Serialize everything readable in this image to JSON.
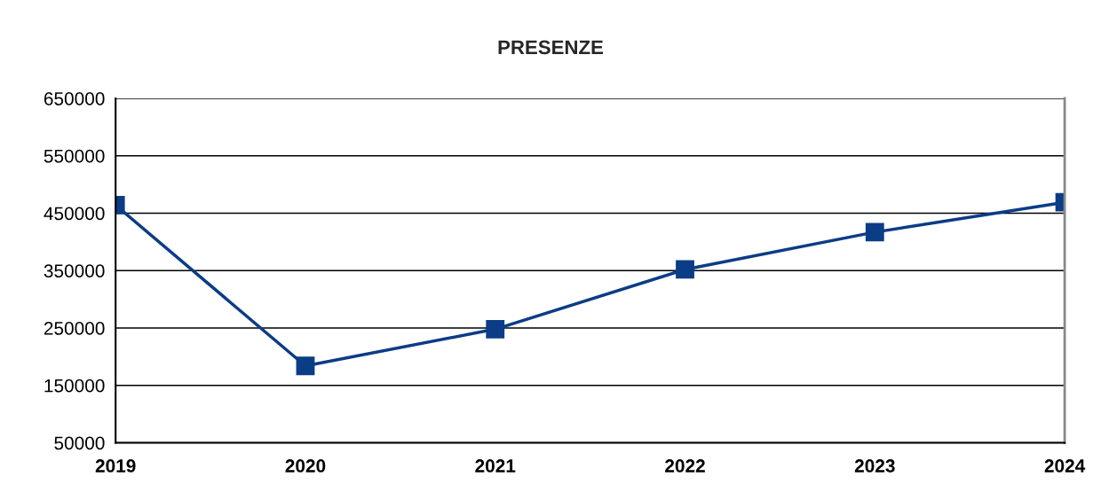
{
  "chart_data": {
    "type": "line",
    "title": "PRESENZE",
    "x": [
      2019,
      2020,
      2021,
      2022,
      2023,
      2024
    ],
    "series": [
      {
        "color": "#0b3c86",
        "values": [
          464000,
          184000,
          248000,
          352000,
          417000,
          469000
        ]
      }
    ],
    "xlim": [
      2019,
      2024
    ],
    "xticks": [
      2019,
      2020,
      2021,
      2022,
      2023,
      2024
    ],
    "ylim": [
      50000,
      650000
    ],
    "yticks": [
      50000,
      150000,
      250000,
      350000,
      450000,
      550000,
      650000
    ],
    "grid": "y",
    "marker": "square",
    "line_style": "solid"
  }
}
